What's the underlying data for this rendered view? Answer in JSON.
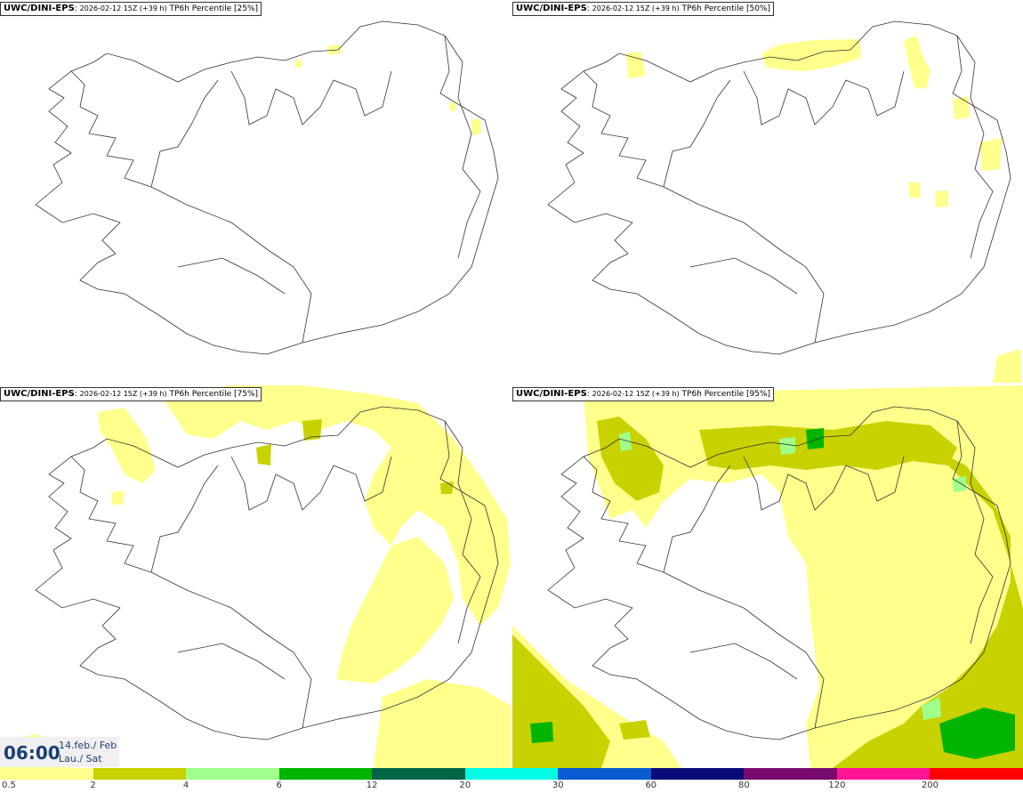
{
  "panels": [
    {
      "model": "UWC/DINI-EPS",
      "run": "2026-02-12 15Z (+39 h)",
      "param": "TP6h Percentile [25%]"
    },
    {
      "model": "UWC/DINI-EPS",
      "run": "2026-02-12 15Z (+39 h)",
      "param": "TP6h Percentile [50%]"
    },
    {
      "model": "UWC/DINI-EPS",
      "run": "2026-02-12 15Z (+39 h)",
      "param": "TP6h Percentile [75%]"
    },
    {
      "model": "UWC/DINI-EPS",
      "run": "2026-02-12 15Z (+39 h)",
      "param": "TP6h Percentile [95%]"
    }
  ],
  "valid_time": {
    "time": "06:00",
    "date_line1": "14.feb./ Feb",
    "date_line2": "Lau./ Sat"
  },
  "colorbar": {
    "ticks": [
      "0.5",
      "2",
      "4",
      "6",
      "12",
      "20",
      "30",
      "60",
      "80",
      "120",
      "200"
    ],
    "colors": [
      "#ffff8c",
      "#c8d200",
      "#a0ff8c",
      "#00b400",
      "#006446",
      "#00ffe6",
      "#0a5ad2",
      "#0a0a78",
      "#780a6e",
      "#ff1493",
      "#ff0000"
    ]
  }
}
